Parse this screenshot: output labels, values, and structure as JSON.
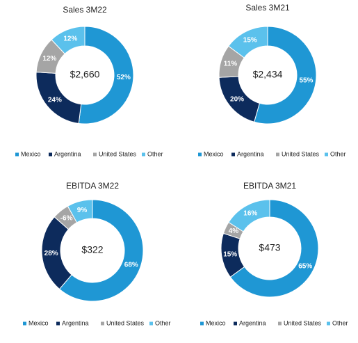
{
  "chart_data": [
    {
      "type": "pie",
      "title": "Sales 3M22",
      "center_label": "$2,660",
      "categories": [
        "Mexico",
        "Argentina",
        "United States",
        "Other"
      ],
      "values": [
        52,
        24,
        12,
        12
      ],
      "value_labels": [
        "52%",
        "24%",
        "12%",
        "12%"
      ],
      "colors": [
        "#1f97d4",
        "#0d2b5c",
        "#a5a5a5",
        "#5bc1ec"
      ]
    },
    {
      "type": "pie",
      "title": "Sales 3M21",
      "center_label": "$2,434",
      "categories": [
        "Mexico",
        "Argentina",
        "United States",
        "Other"
      ],
      "values": [
        55,
        20,
        11,
        15
      ],
      "value_labels": [
        "55%",
        "20%",
        "11%",
        "15%"
      ],
      "colors": [
        "#1f97d4",
        "#0d2b5c",
        "#a5a5a5",
        "#5bc1ec"
      ]
    },
    {
      "type": "pie",
      "title": "EBITDA 3M22",
      "center_label": "$322",
      "categories": [
        "Mexico",
        "Argentina",
        "United States",
        "Other"
      ],
      "values": [
        68,
        28,
        -6,
        9
      ],
      "value_labels": [
        "68%",
        "28%",
        "-6%",
        "9%"
      ],
      "colors": [
        "#1f97d4",
        "#0d2b5c",
        "#a5a5a5",
        "#5bc1ec"
      ]
    },
    {
      "type": "pie",
      "title": "EBITDA 3M21",
      "center_label": "$473",
      "categories": [
        "Mexico",
        "Argentina",
        "United States",
        "Other"
      ],
      "values": [
        65,
        15,
        4,
        16
      ],
      "value_labels": [
        "65%",
        "15%",
        "4%",
        "16%"
      ],
      "colors": [
        "#1f97d4",
        "#0d2b5c",
        "#a5a5a5",
        "#5bc1ec"
      ]
    }
  ]
}
